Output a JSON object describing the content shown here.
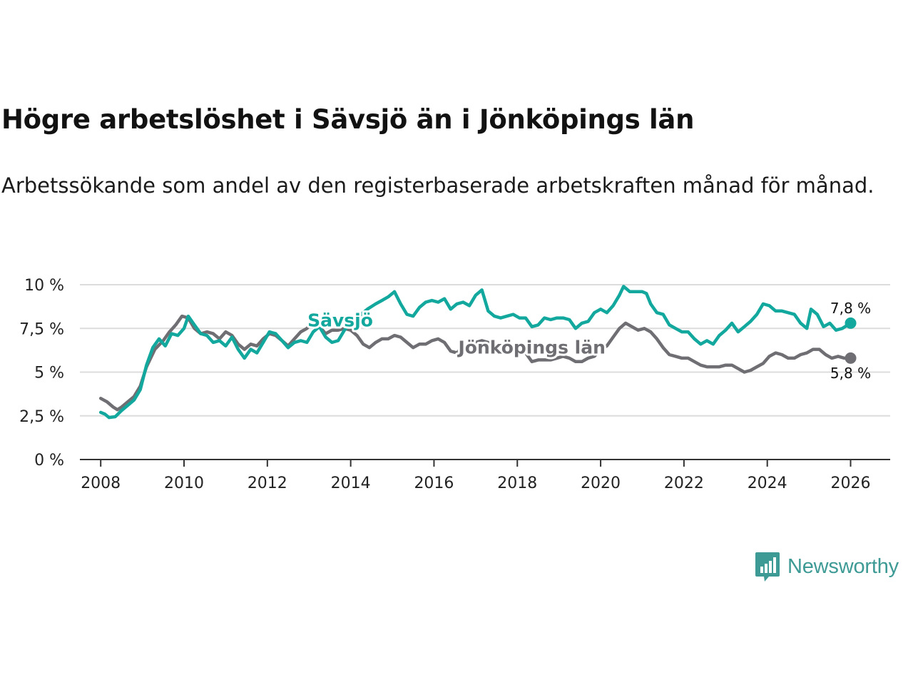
{
  "header": {
    "title": "Högre arbetslöshet i Sävsjö än i Jönköpings län",
    "subtitle": "Arbetssökande som andel av den registerbaserade arbetskraften månad för månad."
  },
  "brand": {
    "name": "Newsworthy",
    "icon": "newsworthy-logo-icon",
    "color": "#3d9a95"
  },
  "chart_data": {
    "type": "line",
    "title": "Högre arbetslöshet i Sävsjö än i Jönköpings län",
    "xlabel": "",
    "ylabel": "",
    "xlim": [
      2007.5,
      2026.95
    ],
    "ylim": [
      0,
      10
    ],
    "x_ticks": [
      2008,
      2010,
      2012,
      2014,
      2016,
      2018,
      2020,
      2022,
      2024,
      2026
    ],
    "x_tick_labels": [
      "2008",
      "2010",
      "2012",
      "2014",
      "2016",
      "2018",
      "2020",
      "2022",
      "2024",
      "2026"
    ],
    "y_ticks": [
      0,
      2.5,
      5,
      7.5,
      10
    ],
    "y_tick_labels": [
      "0 %",
      "2,5 %",
      "5 %",
      "7,5 %",
      "10 %"
    ],
    "grid": true,
    "series": [
      {
        "name": "Jönköpings län",
        "label": "Jönköpings län",
        "color": "#6f6e73",
        "end_label": "5,8 %",
        "points": [
          [
            2008.0,
            3.5
          ],
          [
            2008.15,
            3.3
          ],
          [
            2008.3,
            3.0
          ],
          [
            2008.4,
            2.85
          ],
          [
            2008.5,
            3.0
          ],
          [
            2008.65,
            3.3
          ],
          [
            2008.8,
            3.6
          ],
          [
            2008.95,
            4.2
          ],
          [
            2009.1,
            5.3
          ],
          [
            2009.3,
            6.3
          ],
          [
            2009.5,
            6.8
          ],
          [
            2009.65,
            7.3
          ],
          [
            2009.8,
            7.7
          ],
          [
            2009.95,
            8.2
          ],
          [
            2010.1,
            8.1
          ],
          [
            2010.25,
            7.5
          ],
          [
            2010.4,
            7.2
          ],
          [
            2010.55,
            7.3
          ],
          [
            2010.7,
            7.2
          ],
          [
            2010.85,
            6.9
          ],
          [
            2011.0,
            7.3
          ],
          [
            2011.15,
            7.1
          ],
          [
            2011.3,
            6.6
          ],
          [
            2011.45,
            6.3
          ],
          [
            2011.6,
            6.6
          ],
          [
            2011.75,
            6.5
          ],
          [
            2011.9,
            6.9
          ],
          [
            2012.05,
            7.2
          ],
          [
            2012.2,
            7.1
          ],
          [
            2012.35,
            6.8
          ],
          [
            2012.5,
            6.5
          ],
          [
            2012.65,
            6.9
          ],
          [
            2012.8,
            7.3
          ],
          [
            2012.95,
            7.5
          ],
          [
            2013.1,
            7.9
          ],
          [
            2013.25,
            7.6
          ],
          [
            2013.4,
            7.2
          ],
          [
            2013.55,
            7.4
          ],
          [
            2013.7,
            7.4
          ],
          [
            2013.85,
            7.5
          ],
          [
            2014.0,
            7.4
          ],
          [
            2014.15,
            7.1
          ],
          [
            2014.3,
            6.6
          ],
          [
            2014.45,
            6.4
          ],
          [
            2014.6,
            6.7
          ],
          [
            2014.75,
            6.9
          ],
          [
            2014.9,
            6.9
          ],
          [
            2015.05,
            7.1
          ],
          [
            2015.2,
            7.0
          ],
          [
            2015.35,
            6.7
          ],
          [
            2015.5,
            6.4
          ],
          [
            2015.65,
            6.6
          ],
          [
            2015.8,
            6.6
          ],
          [
            2015.95,
            6.8
          ],
          [
            2016.1,
            6.9
          ],
          [
            2016.25,
            6.7
          ],
          [
            2016.4,
            6.2
          ],
          [
            2016.55,
            6.1
          ],
          [
            2016.7,
            6.5
          ],
          [
            2016.85,
            6.5
          ],
          [
            2017.0,
            6.7
          ],
          [
            2017.15,
            6.8
          ],
          [
            2017.3,
            6.7
          ],
          [
            2017.45,
            6.2
          ],
          [
            2017.6,
            6.3
          ],
          [
            2017.75,
            6.3
          ],
          [
            2017.9,
            6.3
          ],
          [
            2018.05,
            6.3
          ],
          [
            2018.2,
            6.1
          ],
          [
            2018.35,
            5.6
          ],
          [
            2018.5,
            5.7
          ],
          [
            2018.65,
            5.7
          ],
          [
            2018.8,
            5.7
          ],
          [
            2018.95,
            5.8
          ],
          [
            2019.1,
            5.9
          ],
          [
            2019.25,
            5.8
          ],
          [
            2019.4,
            5.6
          ],
          [
            2019.55,
            5.6
          ],
          [
            2019.7,
            5.8
          ],
          [
            2019.85,
            5.9
          ],
          [
            2020.0,
            6.3
          ],
          [
            2020.15,
            6.5
          ],
          [
            2020.3,
            7.0
          ],
          [
            2020.45,
            7.5
          ],
          [
            2020.6,
            7.8
          ],
          [
            2020.75,
            7.6
          ],
          [
            2020.9,
            7.4
          ],
          [
            2021.05,
            7.5
          ],
          [
            2021.2,
            7.3
          ],
          [
            2021.35,
            6.9
          ],
          [
            2021.5,
            6.4
          ],
          [
            2021.65,
            6.0
          ],
          [
            2021.8,
            5.9
          ],
          [
            2021.95,
            5.8
          ],
          [
            2022.1,
            5.8
          ],
          [
            2022.25,
            5.6
          ],
          [
            2022.4,
            5.4
          ],
          [
            2022.55,
            5.3
          ],
          [
            2022.7,
            5.3
          ],
          [
            2022.85,
            5.3
          ],
          [
            2023.0,
            5.4
          ],
          [
            2023.15,
            5.4
          ],
          [
            2023.3,
            5.2
          ],
          [
            2023.45,
            5.0
          ],
          [
            2023.6,
            5.1
          ],
          [
            2023.75,
            5.3
          ],
          [
            2023.9,
            5.5
          ],
          [
            2024.05,
            5.9
          ],
          [
            2024.2,
            6.1
          ],
          [
            2024.35,
            6.0
          ],
          [
            2024.5,
            5.8
          ],
          [
            2024.65,
            5.8
          ],
          [
            2024.8,
            6.0
          ],
          [
            2024.95,
            6.1
          ],
          [
            2025.1,
            6.3
          ],
          [
            2025.25,
            6.3
          ],
          [
            2025.4,
            6.0
          ],
          [
            2025.55,
            5.8
          ],
          [
            2025.7,
            5.9
          ],
          [
            2025.85,
            5.8
          ],
          [
            2026.0,
            5.8
          ]
        ]
      },
      {
        "name": "Sävsjö",
        "label": "Sävsjö",
        "color": "#13a89e",
        "end_label": "7,8 %",
        "points": [
          [
            2008.0,
            2.7
          ],
          [
            2008.1,
            2.6
          ],
          [
            2008.2,
            2.4
          ],
          [
            2008.35,
            2.45
          ],
          [
            2008.5,
            2.8
          ],
          [
            2008.65,
            3.1
          ],
          [
            2008.8,
            3.4
          ],
          [
            2008.95,
            4.0
          ],
          [
            2009.1,
            5.4
          ],
          [
            2009.25,
            6.4
          ],
          [
            2009.4,
            6.9
          ],
          [
            2009.55,
            6.5
          ],
          [
            2009.7,
            7.2
          ],
          [
            2009.85,
            7.1
          ],
          [
            2010.0,
            7.5
          ],
          [
            2010.1,
            8.2
          ],
          [
            2010.25,
            7.7
          ],
          [
            2010.4,
            7.2
          ],
          [
            2010.55,
            7.1
          ],
          [
            2010.7,
            6.7
          ],
          [
            2010.85,
            6.8
          ],
          [
            2011.0,
            6.5
          ],
          [
            2011.15,
            7.0
          ],
          [
            2011.3,
            6.3
          ],
          [
            2011.45,
            5.8
          ],
          [
            2011.6,
            6.3
          ],
          [
            2011.75,
            6.1
          ],
          [
            2011.9,
            6.7
          ],
          [
            2012.05,
            7.3
          ],
          [
            2012.2,
            7.2
          ],
          [
            2012.35,
            6.8
          ],
          [
            2012.5,
            6.4
          ],
          [
            2012.65,
            6.7
          ],
          [
            2012.8,
            6.8
          ],
          [
            2012.95,
            6.7
          ],
          [
            2013.1,
            7.3
          ],
          [
            2013.25,
            7.6
          ],
          [
            2013.4,
            7.0
          ],
          [
            2013.55,
            6.7
          ],
          [
            2013.7,
            6.8
          ],
          [
            2013.85,
            7.4
          ],
          [
            2014.0,
            7.8
          ],
          [
            2014.2,
            8.2
          ],
          [
            2014.4,
            8.6
          ],
          [
            2014.6,
            8.9
          ],
          [
            2014.75,
            9.1
          ],
          [
            2014.9,
            9.3
          ],
          [
            2015.05,
            9.6
          ],
          [
            2015.2,
            8.9
          ],
          [
            2015.35,
            8.3
          ],
          [
            2015.5,
            8.2
          ],
          [
            2015.65,
            8.7
          ],
          [
            2015.8,
            9.0
          ],
          [
            2015.95,
            9.1
          ],
          [
            2016.1,
            9.0
          ],
          [
            2016.25,
            9.2
          ],
          [
            2016.4,
            8.6
          ],
          [
            2016.55,
            8.9
          ],
          [
            2016.7,
            9.0
          ],
          [
            2016.85,
            8.8
          ],
          [
            2017.0,
            9.4
          ],
          [
            2017.15,
            9.7
          ],
          [
            2017.3,
            8.5
          ],
          [
            2017.45,
            8.2
          ],
          [
            2017.6,
            8.1
          ],
          [
            2017.75,
            8.2
          ],
          [
            2017.9,
            8.3
          ],
          [
            2018.05,
            8.1
          ],
          [
            2018.2,
            8.1
          ],
          [
            2018.35,
            7.6
          ],
          [
            2018.5,
            7.7
          ],
          [
            2018.65,
            8.1
          ],
          [
            2018.8,
            8.0
          ],
          [
            2018.95,
            8.1
          ],
          [
            2019.1,
            8.1
          ],
          [
            2019.25,
            8.0
          ],
          [
            2019.4,
            7.5
          ],
          [
            2019.55,
            7.8
          ],
          [
            2019.7,
            7.9
          ],
          [
            2019.85,
            8.4
          ],
          [
            2020.0,
            8.6
          ],
          [
            2020.15,
            8.4
          ],
          [
            2020.3,
            8.8
          ],
          [
            2020.45,
            9.4
          ],
          [
            2020.55,
            9.9
          ],
          [
            2020.7,
            9.6
          ],
          [
            2020.85,
            9.6
          ],
          [
            2021.0,
            9.6
          ],
          [
            2021.1,
            9.5
          ],
          [
            2021.2,
            8.9
          ],
          [
            2021.35,
            8.4
          ],
          [
            2021.5,
            8.3
          ],
          [
            2021.65,
            7.7
          ],
          [
            2021.8,
            7.5
          ],
          [
            2021.95,
            7.3
          ],
          [
            2022.1,
            7.3
          ],
          [
            2022.25,
            6.9
          ],
          [
            2022.4,
            6.6
          ],
          [
            2022.55,
            6.8
          ],
          [
            2022.7,
            6.6
          ],
          [
            2022.85,
            7.1
          ],
          [
            2023.0,
            7.4
          ],
          [
            2023.15,
            7.8
          ],
          [
            2023.3,
            7.3
          ],
          [
            2023.45,
            7.6
          ],
          [
            2023.6,
            7.9
          ],
          [
            2023.75,
            8.3
          ],
          [
            2023.9,
            8.9
          ],
          [
            2024.05,
            8.8
          ],
          [
            2024.2,
            8.5
          ],
          [
            2024.35,
            8.5
          ],
          [
            2024.5,
            8.4
          ],
          [
            2024.65,
            8.3
          ],
          [
            2024.8,
            7.8
          ],
          [
            2024.95,
            7.5
          ],
          [
            2025.05,
            8.6
          ],
          [
            2025.2,
            8.3
          ],
          [
            2025.35,
            7.6
          ],
          [
            2025.5,
            7.8
          ],
          [
            2025.65,
            7.4
          ],
          [
            2025.8,
            7.5
          ],
          [
            2026.0,
            7.8
          ]
        ]
      }
    ]
  }
}
